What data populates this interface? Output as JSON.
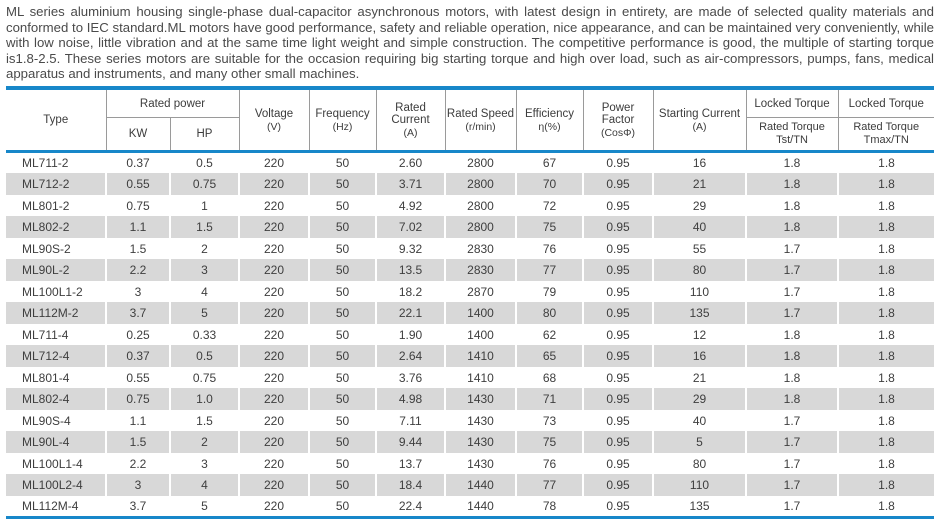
{
  "intro": "ML series aluminium housing single-phase dual-capacitor asynchronous motors, with latest design in entirety, are made of selected quality materials and conformed to IEC standard.ML motors have good performance, safety and reliable operation, nice appearance, and can be maintained very conveniently, while with low noise, little vibration and at the same time light weight and simple construction. The competitive performance is good, the multiple of starting torque is1.8-2.5. These series motors are suitable for the occasion requiring  big starting torque and high over load, such as air-compressors, pumps, fans, medical apparatus and instruments, and many other small machines.",
  "colors": {
    "accent_blue": "#1787c9",
    "row_stripe_gray": "#d8d8d8",
    "header_border_gray": "#9a9a9a"
  },
  "table": {
    "column_keys": [
      "type",
      "kw",
      "hp",
      "voltage",
      "frequency",
      "rated_current",
      "rated_speed",
      "efficiency",
      "power_factor",
      "starting_current",
      "tst_tn",
      "tmax_tn"
    ],
    "header": {
      "type": "Type",
      "rated_power": "Rated power",
      "kw": "KW",
      "hp": "HP",
      "voltage": {
        "label": "Voltage",
        "unit": "(V)"
      },
      "frequency": {
        "label": "Frequency",
        "unit": "(Hz)"
      },
      "rated_current": {
        "label": "Rated Current",
        "unit": "(A)"
      },
      "rated_speed": {
        "label": "Rated Speed",
        "unit": "(r/min)"
      },
      "efficiency": {
        "label": "Efficiency",
        "unit": "η(%)"
      },
      "power_factor": {
        "label": "Power Factor",
        "unit": "(CosΦ)"
      },
      "starting_current": {
        "label": "Starting Current",
        "unit": "(A)"
      },
      "locked_torque_tst": {
        "top": "Locked Torque",
        "bottom_line1": "Rated Torque",
        "bottom_line2": "Tst/TN"
      },
      "locked_torque_tmax": {
        "top": "Locked Torque",
        "bottom_line1": "Rated Torque",
        "bottom_line2": "Tmax/TN"
      }
    },
    "rows": [
      [
        "ML711-2",
        "0.37",
        "0.5",
        "220",
        "50",
        "2.60",
        "2800",
        "67",
        "0.95",
        "16",
        "1.8",
        "1.8"
      ],
      [
        "ML712-2",
        "0.55",
        "0.75",
        "220",
        "50",
        "3.71",
        "2800",
        "70",
        "0.95",
        "21",
        "1.8",
        "1.8"
      ],
      [
        "ML801-2",
        "0.75",
        "1",
        "220",
        "50",
        "4.92",
        "2800",
        "72",
        "0.95",
        "29",
        "1.8",
        "1.8"
      ],
      [
        "ML802-2",
        "1.1",
        "1.5",
        "220",
        "50",
        "7.02",
        "2800",
        "75",
        "0.95",
        "40",
        "1.8",
        "1.8"
      ],
      [
        "ML90S-2",
        "1.5",
        "2",
        "220",
        "50",
        "9.32",
        "2830",
        "76",
        "0.95",
        "55",
        "1.7",
        "1.8"
      ],
      [
        "ML90L-2",
        "2.2",
        "3",
        "220",
        "50",
        "13.5",
        "2830",
        "77",
        "0.95",
        "80",
        "1.7",
        "1.8"
      ],
      [
        "ML100L1-2",
        "3",
        "4",
        "220",
        "50",
        "18.2",
        "2870",
        "79",
        "0.95",
        "110",
        "1.7",
        "1.8"
      ],
      [
        "ML112M-2",
        "3.7",
        "5",
        "220",
        "50",
        "22.1",
        "1400",
        "80",
        "0.95",
        "135",
        "1.7",
        "1.8"
      ],
      [
        "ML711-4",
        "0.25",
        "0.33",
        "220",
        "50",
        "1.90",
        "1400",
        "62",
        "0.95",
        "12",
        "1.8",
        "1.8"
      ],
      [
        "ML712-4",
        "0.37",
        "0.5",
        "220",
        "50",
        "2.64",
        "1410",
        "65",
        "0.95",
        "16",
        "1.8",
        "1.8"
      ],
      [
        "ML801-4",
        "0.55",
        "0.75",
        "220",
        "50",
        "3.76",
        "1410",
        "68",
        "0.95",
        "21",
        "1.8",
        "1.8"
      ],
      [
        "ML802-4",
        "0.75",
        "1.0",
        "220",
        "50",
        "4.98",
        "1430",
        "71",
        "0.95",
        "29",
        "1.8",
        "1.8"
      ],
      [
        "ML90S-4",
        "1.1",
        "1.5",
        "220",
        "50",
        "7.11",
        "1430",
        "73",
        "0.95",
        "40",
        "1.7",
        "1.8"
      ],
      [
        "ML90L-4",
        "1.5",
        "2",
        "220",
        "50",
        "9.44",
        "1430",
        "75",
        "0.95",
        "5",
        "1.7",
        "1.8"
      ],
      [
        "ML100L1-4",
        "2.2",
        "3",
        "220",
        "50",
        "13.7",
        "1430",
        "76",
        "0.95",
        "80",
        "1.7",
        "1.8"
      ],
      [
        "ML100L2-4",
        "3",
        "4",
        "220",
        "50",
        "18.4",
        "1440",
        "77",
        "0.95",
        "110",
        "1.7",
        "1.8"
      ],
      [
        "ML112M-4",
        "3.7",
        "5",
        "220",
        "50",
        "22.4",
        "1440",
        "78",
        "0.95",
        "135",
        "1.7",
        "1.8"
      ]
    ]
  }
}
